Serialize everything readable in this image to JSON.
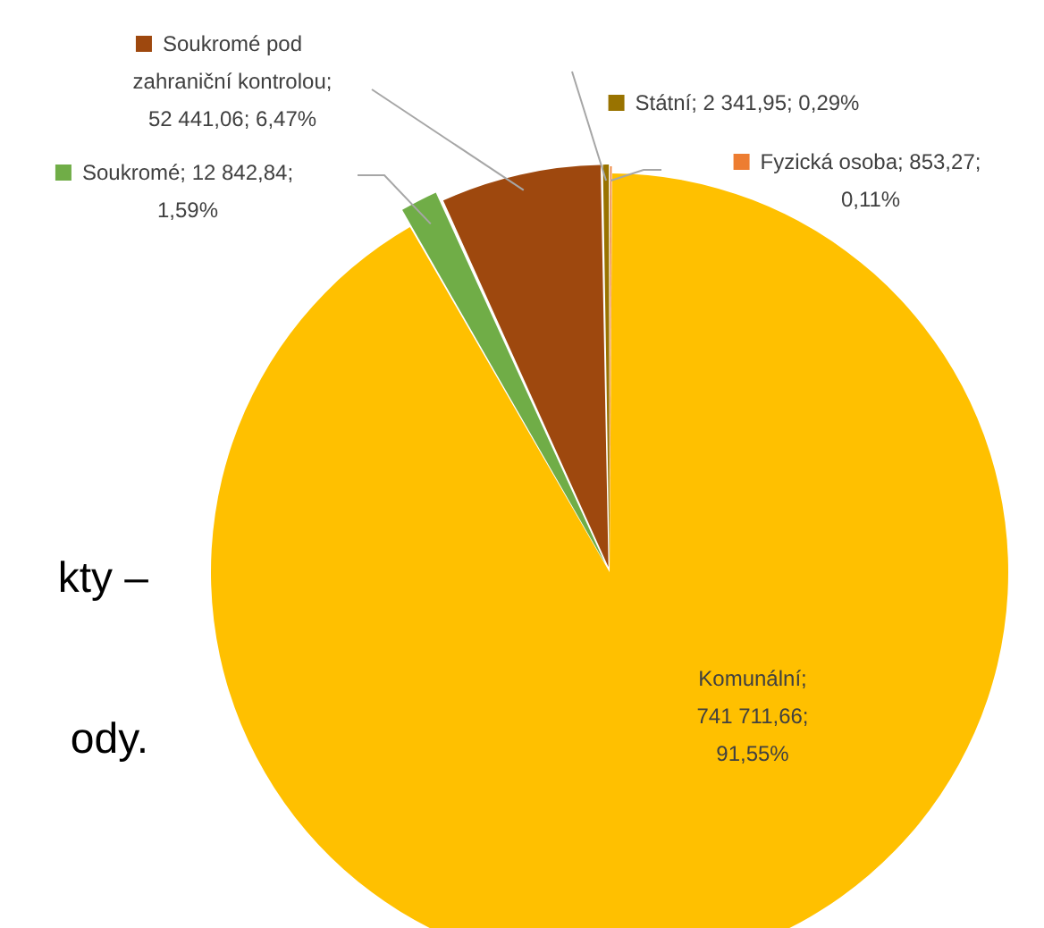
{
  "chart_data": {
    "type": "pie",
    "categories": [
      "Fyzická osoba",
      "Komunální",
      "Soukromé",
      "Soukromé pod zahraniční kontrolou",
      "Státní"
    ],
    "values": [
      853.27,
      741711.66,
      12842.84,
      52441.06,
      2341.95
    ],
    "colors": [
      "#ed7d31",
      "#ffc000",
      "#70ad47",
      "#9e480e",
      "#997300"
    ],
    "value_labels": [
      "; 853,27; 0,11%",
      "; 741 711,66; 91,55%",
      "; 12 842,84; 1,59%",
      "; 52 441,06; 6,47%",
      "; 2 341,95; 0,29%"
    ],
    "annotations": [
      "kty –",
      "ody."
    ],
    "legend": "top"
  }
}
